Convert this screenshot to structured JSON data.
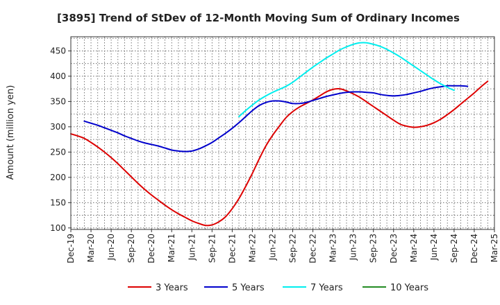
{
  "chart_data": {
    "type": "line",
    "title": "[3895]  Trend of StDev of 12-Month Moving Sum of Ordinary Incomes",
    "xlabel": "",
    "ylabel": "Amount (million yen)",
    "ylim": [
      97,
      478
    ],
    "y_ticks": [
      100,
      150,
      200,
      250,
      300,
      350,
      400,
      450
    ],
    "x_ticks": [
      "Dec-19",
      "Mar-20",
      "Jun-20",
      "Sep-20",
      "Dec-20",
      "Mar-21",
      "Jun-21",
      "Sep-21",
      "Dec-21",
      "Mar-22",
      "Jun-22",
      "Sep-22",
      "Dec-22",
      "Mar-23",
      "Jun-23",
      "Sep-23",
      "Dec-23",
      "Mar-24",
      "Jun-24",
      "Sep-24",
      "Dec-24",
      "Mar-25"
    ],
    "grid": true,
    "legend_position": "bottom",
    "series": [
      {
        "name": "3 Years",
        "color": "#dd0000",
        "start_index": 0,
        "values": [
          286,
          282,
          277,
          269,
          260,
          250,
          239,
          227,
          214,
          201,
          188,
          176,
          165,
          155,
          145,
          136,
          128,
          121,
          114,
          109,
          105,
          106,
          112,
          122,
          138,
          158,
          182,
          208,
          236,
          262,
          283,
          301,
          318,
          330,
          339,
          346,
          353,
          361,
          369,
          374,
          375,
          371,
          365,
          358,
          349,
          340,
          331,
          322,
          313,
          305,
          301,
          299,
          300,
          303,
          308,
          315,
          324,
          334,
          345,
          356,
          367,
          379,
          390
        ]
      },
      {
        "name": "5 Years",
        "color": "#0000cc",
        "start_index": 2,
        "values": [
          311,
          307,
          303,
          298,
          293,
          288,
          282,
          277,
          272,
          268,
          265,
          262,
          258,
          254,
          252,
          251,
          252,
          256,
          262,
          269,
          278,
          287,
          297,
          308,
          320,
          332,
          342,
          348,
          351,
          351,
          349,
          346,
          346,
          348,
          352,
          356,
          360,
          363,
          366,
          368,
          369,
          369,
          368,
          367,
          364,
          362,
          361,
          362,
          364,
          367,
          370,
          374,
          377,
          379,
          381,
          381,
          381,
          380
        ]
      },
      {
        "name": "7 Years",
        "color": "#00eeee",
        "start_index": 25,
        "values": [
          320,
          332,
          343,
          353,
          361,
          368,
          374,
          380,
          388,
          398,
          408,
          418,
          427,
          436,
          444,
          452,
          458,
          463,
          466,
          466,
          463,
          459,
          453,
          446,
          438,
          429,
          420,
          411,
          402,
          393,
          385,
          378,
          372
        ]
      },
      {
        "name": "10 Years",
        "color": "#228b22",
        "start_index": 0,
        "values": []
      }
    ]
  }
}
